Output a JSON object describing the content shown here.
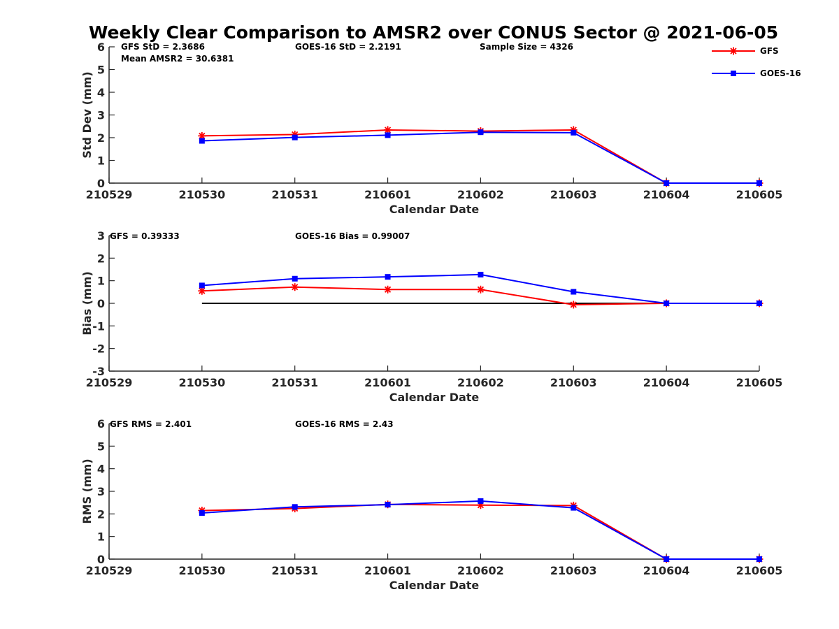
{
  "title": "Weekly Clear Comparison to AMSR2 over CONUS Sector @ 2021-06-05",
  "legend": {
    "placement": "top-right",
    "entries": [
      {
        "name": "GFS",
        "color": "#ff0000",
        "marker": "asterisk"
      },
      {
        "name": "GOES-16",
        "color": "#0000ff",
        "marker": "square"
      }
    ]
  },
  "colors": {
    "gfs": "#ff0000",
    "goes": "#0000ff",
    "axis": "#262626",
    "zero_line": "#000000"
  },
  "chart_data": [
    {
      "type": "line",
      "annotations": [
        "GFS StD = 2.3686",
        "Mean AMSR2 = 30.6381",
        "GOES-16 StD = 2.2191",
        "Sample Size = 4326"
      ],
      "xlabel": "Calendar Date",
      "ylabel": "Std Dev (mm)",
      "xticks": [
        "210529",
        "210530",
        "210531",
        "210601",
        "210602",
        "210603",
        "210604",
        "210605"
      ],
      "ylim": [
        0,
        6
      ],
      "yticks": [
        "0",
        "1",
        "2",
        "3",
        "4",
        "5",
        "6"
      ],
      "x": [
        "210530",
        "210531",
        "210601",
        "210602",
        "210603",
        "210604",
        "210605"
      ],
      "series": [
        {
          "name": "GFS",
          "values": [
            2.08,
            2.14,
            2.34,
            2.29,
            2.34,
            0,
            0
          ]
        },
        {
          "name": "GOES-16",
          "values": [
            1.86,
            2.01,
            2.11,
            2.24,
            2.22,
            0,
            0
          ]
        }
      ]
    },
    {
      "type": "line",
      "annotations": [
        "GFS = 0.39333",
        "GOES-16 Bias  = 0.99007"
      ],
      "xlabel": "Calendar Date",
      "ylabel": "Bias (mm)",
      "xticks": [
        "210529",
        "210530",
        "210531",
        "210601",
        "210602",
        "210603",
        "210604",
        "210605"
      ],
      "ylim": [
        -3,
        3
      ],
      "yticks": [
        "-3",
        "-2",
        "-1",
        "0",
        "1",
        "2",
        "3"
      ],
      "zero_line": true,
      "x": [
        "210530",
        "210531",
        "210601",
        "210602",
        "210603",
        "210604",
        "210605"
      ],
      "series": [
        {
          "name": "GFS",
          "values": [
            0.55,
            0.72,
            0.61,
            0.61,
            -0.06,
            0,
            0
          ]
        },
        {
          "name": "GOES-16",
          "values": [
            0.79,
            1.09,
            1.17,
            1.27,
            0.51,
            0,
            0
          ]
        }
      ]
    },
    {
      "type": "line",
      "annotations": [
        "GFS RMS = 2.401",
        "GOES-16 RMS = 2.43"
      ],
      "xlabel": "Calendar Date",
      "ylabel": "RMS (mm)",
      "xticks": [
        "210529",
        "210530",
        "210531",
        "210601",
        "210602",
        "210603",
        "210604",
        "210605"
      ],
      "ylim": [
        0,
        6
      ],
      "yticks": [
        "0",
        "1",
        "2",
        "3",
        "4",
        "5",
        "6"
      ],
      "x": [
        "210530",
        "210531",
        "210601",
        "210602",
        "210603",
        "210604",
        "210605"
      ],
      "series": [
        {
          "name": "GFS",
          "values": [
            2.15,
            2.24,
            2.42,
            2.39,
            2.37,
            0,
            0
          ]
        },
        {
          "name": "GOES-16",
          "values": [
            2.04,
            2.31,
            2.41,
            2.57,
            2.27,
            0,
            0
          ]
        }
      ]
    }
  ]
}
